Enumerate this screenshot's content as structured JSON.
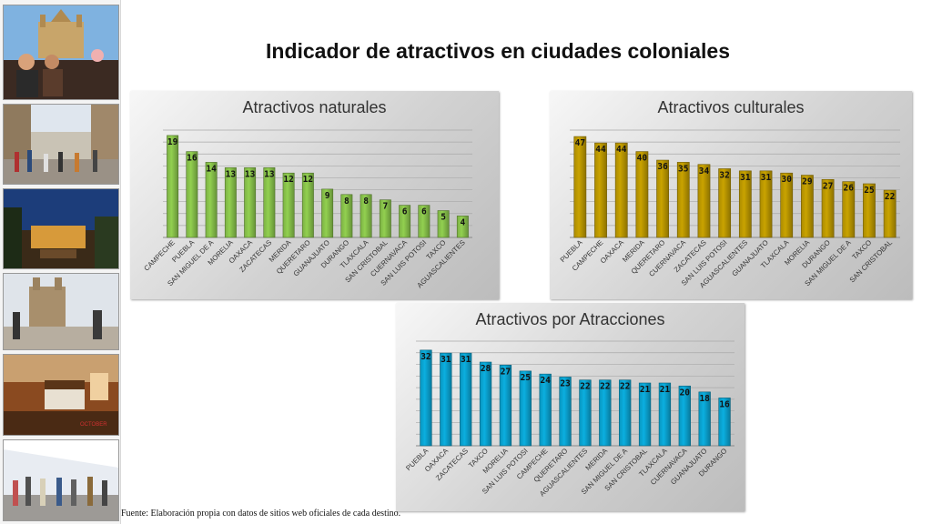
{
  "page": {
    "title": "Indicador de atractivos en ciudades coloniales",
    "source": "Fuente: Elaboración propia con datos de sitios web oficiales de cada destino."
  },
  "photos": [
    {
      "name": "photo-couple-terrace"
    },
    {
      "name": "photo-pedestrian-street"
    },
    {
      "name": "photo-night-courtyard"
    },
    {
      "name": "photo-church-plaza"
    },
    {
      "name": "photo-hotel-room",
      "overlay_text": "OCTOBER"
    },
    {
      "name": "photo-market-crowd"
    }
  ],
  "colors": {
    "naturales": "#92D050",
    "culturales": "#C9A300",
    "atracciones": "#0BAFE0"
  },
  "chart_data": [
    {
      "type": "bar",
      "title": "Atractivos naturales",
      "categories": [
        "CAMPECHE",
        "PUEBLA",
        "SAN MIGUEL DE A",
        "MORELIA",
        "OAXACA",
        "ZACATECAS",
        "MERIDA",
        "QUERETARO",
        "GUANAJUATO",
        "DURANGO",
        "TLAXCALA",
        "SAN CRISTOBAL",
        "CUERNAVACA",
        "SAN LUIS POTOSI",
        "TAXCO",
        "AGUASCALIENTES"
      ],
      "values": [
        19,
        16,
        14,
        13,
        13,
        13,
        12,
        12,
        9,
        8,
        8,
        7,
        6,
        6,
        5,
        4
      ],
      "ylim": [
        0,
        20
      ],
      "grid": true
    },
    {
      "type": "bar",
      "title": "Atractivos culturales",
      "categories": [
        "PUEBLA",
        "CAMPECHE",
        "OAXACA",
        "MERIDA",
        "QUERETARO",
        "CUERNAVACA",
        "ZACATECAS",
        "SAN LUIS POTOSI",
        "AGUASCALIENTES",
        "GUANAJUATO",
        "TLAXCALA",
        "MORELIA",
        "DURANGO",
        "SAN MIGUEL DE A",
        "TAXCO",
        "SAN CRISTOBAL"
      ],
      "values": [
        47,
        44,
        44,
        40,
        36,
        35,
        34,
        32,
        31,
        31,
        30,
        29,
        27,
        26,
        25,
        22
      ],
      "ylim": [
        0,
        50
      ],
      "grid": true
    },
    {
      "type": "bar",
      "title": "Atractivos por Atracciones",
      "categories": [
        "PUEBLA",
        "OAXACA",
        "ZACATECAS",
        "TAXCO",
        "MORELIA",
        "SAN LUIS POTOSI",
        "CAMPECHE",
        "QUERETARO",
        "AGUASCALIENTES",
        "MERIDA",
        "SAN MIGUEL DE A",
        "SAN CRISTOBAL",
        "TLAXCALA",
        "CUERNAVACA",
        "GUANAJUATO",
        "DURANGO"
      ],
      "values": [
        32,
        31,
        31,
        28,
        27,
        25,
        24,
        23,
        22,
        22,
        22,
        21,
        21,
        20,
        18,
        16
      ],
      "ylim": [
        0,
        35
      ],
      "grid": true
    }
  ]
}
